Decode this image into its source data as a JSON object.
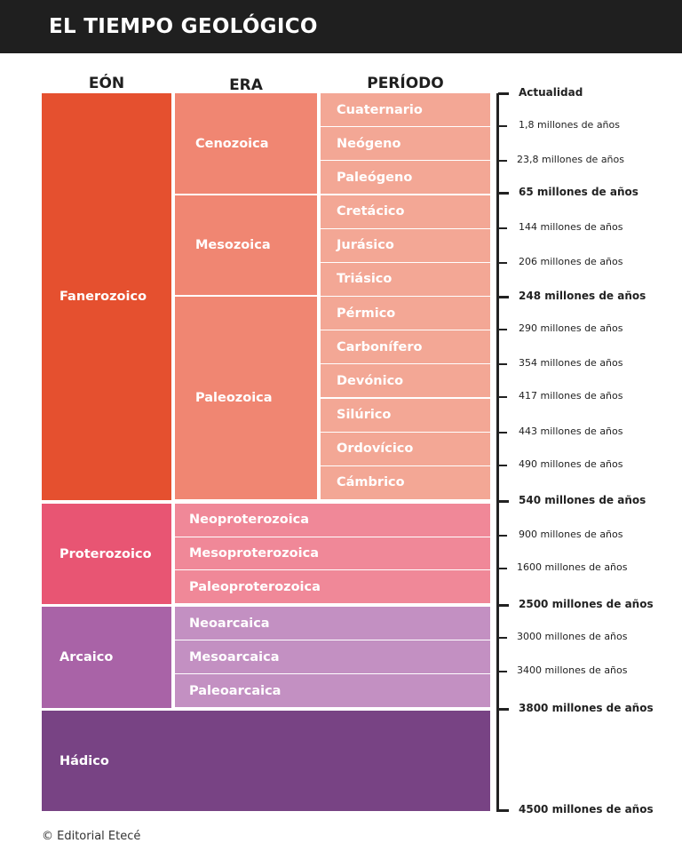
{
  "title": "EL TIEMPO GEOLÓGICO",
  "columns": {
    "eon": "EÓN",
    "era": "ERA",
    "period": "PERÍODO"
  },
  "colors": {
    "fanerozoico": "#e5502f",
    "fanero_era": "#f08672",
    "fanero_period": "#f3a795",
    "proterozoico": "#e85573",
    "protero_era": "#f08898",
    "arcaico": "#a963a7",
    "arcaico_era": "#c390c2",
    "hadico": "#784384"
  },
  "eons": [
    "Fanerozoico",
    "Proterozoico",
    "Arcaico",
    "Hádico"
  ],
  "eras_fanerozoico": [
    "Cenozoica",
    "Mesozoica",
    "Paleozoica"
  ],
  "periods": [
    "Cuaternario",
    "Neógeno",
    "Paleógeno",
    "Cretácico",
    "Jurásico",
    "Triásico",
    "Pérmico",
    "Carbonífero",
    "Devónico",
    "Silúrico",
    "Ordovícico",
    "Cámbrico"
  ],
  "eras_proterozoico": [
    "Neoproterozoica",
    "Mesoproterozoica",
    "Paleoproterozoica"
  ],
  "eras_arcaico": [
    "Neoarcaica",
    "Mesoarcaica",
    "Paleoarcaica"
  ],
  "timeline": [
    {
      "label": "Actualidad",
      "major": true
    },
    {
      "label": "1,8 millones de años",
      "major": false
    },
    {
      "label": "23,8 millones de años",
      "major": false
    },
    {
      "label": "65 millones de años",
      "major": true
    },
    {
      "label": "144 millones de años",
      "major": false
    },
    {
      "label": "206 millones de años",
      "major": false
    },
    {
      "label": "248 millones de años",
      "major": true
    },
    {
      "label": "290 millones de años",
      "major": false
    },
    {
      "label": "354 millones de años",
      "major": false
    },
    {
      "label": "417 millones de años",
      "major": false
    },
    {
      "label": "443 millones de años",
      "major": false
    },
    {
      "label": "490 millones de años",
      "major": false
    },
    {
      "label": "540 millones de años",
      "major": true
    },
    {
      "label": "900 millones de años",
      "major": false
    },
    {
      "label": "1600 millones de años",
      "major": false
    },
    {
      "label": "2500 millones de años",
      "major": true
    },
    {
      "label": "3000 millones de años",
      "major": false
    },
    {
      "label": "3400 millones de años",
      "major": false
    },
    {
      "label": "3800 millones de años",
      "major": true
    },
    {
      "label": "4500 millones de años",
      "major": true
    }
  ],
  "footer": "© Editorial Etecé"
}
